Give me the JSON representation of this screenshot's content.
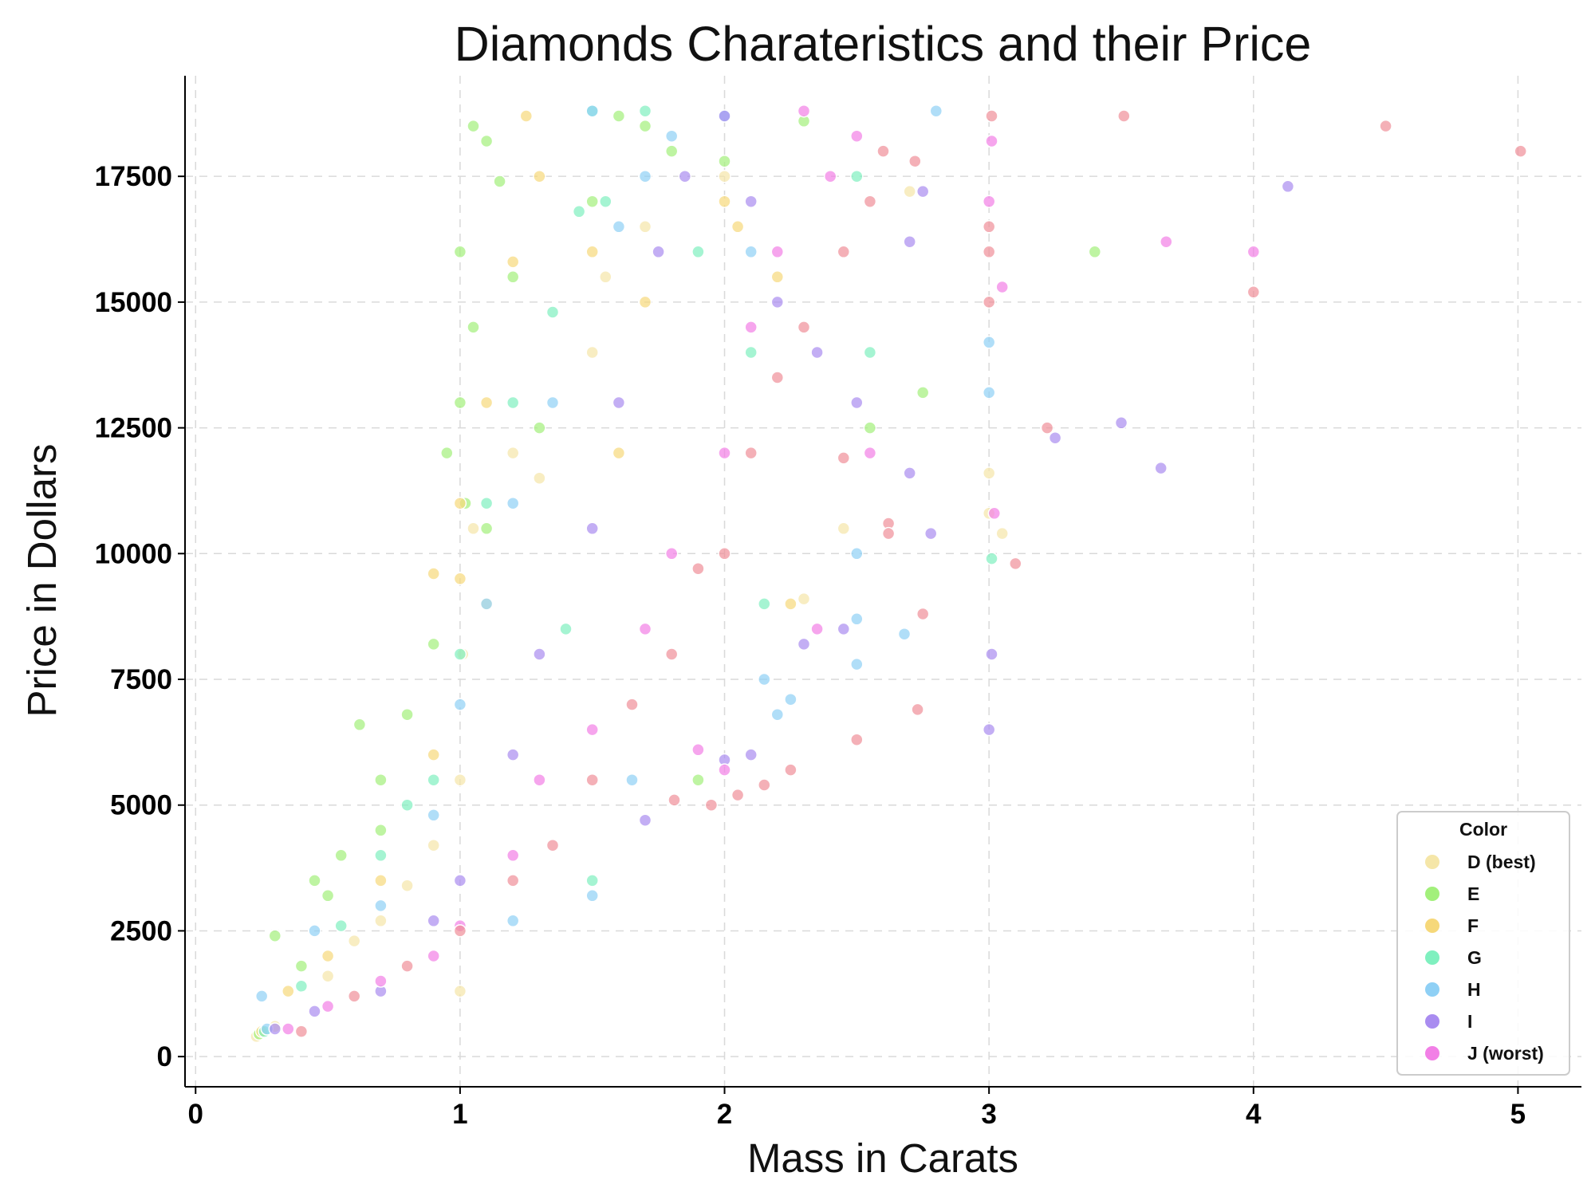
{
  "chart_data": {
    "type": "scatter",
    "title": "Diamonds Charateristics and their Price",
    "xlabel": "Mass in Carats",
    "ylabel": "Price in Dollars",
    "xlim": [
      -0.04,
      5.24
    ],
    "ylim": [
      -600,
      19500
    ],
    "x_ticks": [
      0,
      1,
      2,
      3,
      4,
      5
    ],
    "y_ticks": [
      0,
      2500,
      5000,
      7500,
      10000,
      12500,
      15000,
      17500
    ],
    "grid": true,
    "legend": {
      "title": "Color",
      "placement": "bottom-right"
    },
    "series": [
      {
        "name": "D (best)",
        "color": "#f5e6a8",
        "points": [
          [
            0.23,
            400
          ],
          [
            0.3,
            600
          ],
          [
            0.5,
            1600
          ],
          [
            0.7,
            2700
          ],
          [
            0.9,
            4200
          ],
          [
            1.0,
            5500
          ],
          [
            1.01,
            8000
          ],
          [
            1.05,
            10500
          ],
          [
            1.1,
            9000
          ],
          [
            1.2,
            12000
          ],
          [
            1.3,
            11500
          ],
          [
            1.5,
            14000
          ],
          [
            1.55,
            15500
          ],
          [
            1.7,
            16500
          ],
          [
            2.0,
            17500
          ],
          [
            2.7,
            17200
          ],
          [
            3.0,
            11600
          ],
          [
            3.05,
            10400
          ],
          [
            3.0,
            10800
          ],
          [
            2.45,
            10500
          ],
          [
            2.3,
            9100
          ],
          [
            0.8,
            3400
          ],
          [
            0.6,
            2300
          ],
          [
            1.0,
            1300
          ]
        ]
      },
      {
        "name": "E",
        "color": "#a2f07b",
        "points": [
          [
            0.24,
            450
          ],
          [
            0.3,
            2400
          ],
          [
            0.45,
            3500
          ],
          [
            0.55,
            4000
          ],
          [
            0.62,
            6600
          ],
          [
            0.7,
            5500
          ],
          [
            0.8,
            6800
          ],
          [
            0.9,
            8200
          ],
          [
            0.95,
            12000
          ],
          [
            1.0,
            16000
          ],
          [
            1.05,
            18500
          ],
          [
            1.1,
            18200
          ],
          [
            1.15,
            17400
          ],
          [
            1.0,
            13000
          ],
          [
            1.05,
            14500
          ],
          [
            1.2,
            15500
          ],
          [
            1.3,
            12500
          ],
          [
            1.5,
            17000
          ],
          [
            1.6,
            18700
          ],
          [
            1.7,
            18500
          ],
          [
            1.8,
            18000
          ],
          [
            2.0,
            17800
          ],
          [
            2.3,
            18600
          ],
          [
            3.4,
            16000
          ],
          [
            2.75,
            13200
          ],
          [
            2.55,
            12500
          ],
          [
            1.9,
            5500
          ],
          [
            1.02,
            11000
          ],
          [
            1.1,
            10500
          ],
          [
            0.7,
            4500
          ],
          [
            0.5,
            3200
          ],
          [
            0.4,
            1800
          ]
        ]
      },
      {
        "name": "F",
        "color": "#f6d87a",
        "points": [
          [
            0.25,
            500
          ],
          [
            0.35,
            1300
          ],
          [
            0.5,
            2000
          ],
          [
            0.7,
            3500
          ],
          [
            0.9,
            6000
          ],
          [
            1.0,
            9500
          ],
          [
            1.1,
            13000
          ],
          [
            1.2,
            15800
          ],
          [
            1.3,
            17500
          ],
          [
            1.5,
            16000
          ],
          [
            1.7,
            15000
          ],
          [
            2.0,
            17000
          ],
          [
            2.05,
            16500
          ],
          [
            2.2,
            15500
          ],
          [
            0.9,
            9600
          ],
          [
            1.0,
            11000
          ],
          [
            2.25,
            9000
          ],
          [
            1.6,
            12000
          ],
          [
            1.25,
            18700
          ]
        ]
      },
      {
        "name": "G",
        "color": "#7ff0bf",
        "points": [
          [
            0.26,
            500
          ],
          [
            0.4,
            1400
          ],
          [
            0.55,
            2600
          ],
          [
            0.7,
            4000
          ],
          [
            0.9,
            5500
          ],
          [
            1.0,
            8000
          ],
          [
            1.1,
            11000
          ],
          [
            1.2,
            13000
          ],
          [
            1.35,
            14800
          ],
          [
            1.5,
            18800
          ],
          [
            1.55,
            17000
          ],
          [
            1.7,
            18800
          ],
          [
            1.9,
            16000
          ],
          [
            2.1,
            14000
          ],
          [
            2.5,
            17500
          ],
          [
            2.55,
            14000
          ],
          [
            3.01,
            9900
          ],
          [
            2.15,
            9000
          ],
          [
            1.5,
            3500
          ],
          [
            1.4,
            8500
          ],
          [
            0.8,
            5000
          ],
          [
            1.45,
            16800
          ]
        ]
      },
      {
        "name": "H",
        "color": "#8fd0f5",
        "points": [
          [
            0.27,
            550
          ],
          [
            0.25,
            1200
          ],
          [
            0.45,
            2500
          ],
          [
            0.7,
            3000
          ],
          [
            0.9,
            4800
          ],
          [
            1.0,
            7000
          ],
          [
            1.1,
            9000
          ],
          [
            1.2,
            11000
          ],
          [
            1.35,
            13000
          ],
          [
            1.5,
            18800
          ],
          [
            1.6,
            16500
          ],
          [
            1.7,
            17500
          ],
          [
            1.8,
            18300
          ],
          [
            2.0,
            18700
          ],
          [
            2.1,
            16000
          ],
          [
            2.25,
            7100
          ],
          [
            2.5,
            8700
          ],
          [
            2.5,
            7800
          ],
          [
            2.5,
            10000
          ],
          [
            2.68,
            8400
          ],
          [
            2.8,
            18800
          ],
          [
            3.0,
            14200
          ],
          [
            3.0,
            13200
          ],
          [
            2.15,
            7500
          ],
          [
            1.5,
            3200
          ],
          [
            1.65,
            5500
          ],
          [
            1.2,
            2700
          ],
          [
            2.2,
            6800
          ]
        ]
      },
      {
        "name": "I",
        "color": "#a98cf0",
        "points": [
          [
            0.3,
            550
          ],
          [
            0.45,
            900
          ],
          [
            0.7,
            1300
          ],
          [
            0.9,
            2700
          ],
          [
            1.0,
            3500
          ],
          [
            1.2,
            6000
          ],
          [
            1.3,
            8000
          ],
          [
            1.5,
            10500
          ],
          [
            1.6,
            13000
          ],
          [
            1.75,
            16000
          ],
          [
            1.85,
            17500
          ],
          [
            2.0,
            18700
          ],
          [
            2.1,
            17000
          ],
          [
            2.2,
            15000
          ],
          [
            2.35,
            14000
          ],
          [
            2.5,
            13000
          ],
          [
            2.7,
            16200
          ],
          [
            2.75,
            17200
          ],
          [
            3.01,
            8000
          ],
          [
            3.0,
            6500
          ],
          [
            3.25,
            12300
          ],
          [
            3.5,
            12600
          ],
          [
            3.65,
            11700
          ],
          [
            4.13,
            17300
          ],
          [
            2.3,
            8200
          ],
          [
            2.1,
            6000
          ],
          [
            2.0,
            5900
          ],
          [
            1.7,
            4700
          ],
          [
            2.78,
            10400
          ],
          [
            2.7,
            11600
          ],
          [
            2.45,
            8500
          ]
        ]
      },
      {
        "name": "J (worst)",
        "color": "#f27fe6",
        "points": [
          [
            0.35,
            550
          ],
          [
            0.5,
            1000
          ],
          [
            0.7,
            1500
          ],
          [
            0.9,
            2000
          ],
          [
            1.0,
            2600
          ],
          [
            1.2,
            4000
          ],
          [
            1.3,
            5500
          ],
          [
            1.5,
            6500
          ],
          [
            1.7,
            8500
          ],
          [
            1.8,
            10000
          ],
          [
            2.0,
            12000
          ],
          [
            2.1,
            14500
          ],
          [
            2.2,
            16000
          ],
          [
            2.3,
            18800
          ],
          [
            2.4,
            17500
          ],
          [
            2.5,
            18300
          ],
          [
            3.01,
            18200
          ],
          [
            3.0,
            17000
          ],
          [
            3.02,
            10800
          ],
          [
            3.05,
            15300
          ],
          [
            3.67,
            16200
          ],
          [
            4.0,
            16000
          ],
          [
            2.55,
            12000
          ],
          [
            2.35,
            8500
          ],
          [
            2.0,
            5700
          ],
          [
            1.9,
            6100
          ]
        ]
      },
      {
        "name": "",
        "color": "#f08f98",
        "points": [
          [
            0.4,
            500
          ],
          [
            0.6,
            1200
          ],
          [
            0.8,
            1800
          ],
          [
            1.0,
            2500
          ],
          [
            1.2,
            3500
          ],
          [
            1.35,
            4200
          ],
          [
            1.5,
            5500
          ],
          [
            1.65,
            7000
          ],
          [
            1.8,
            8000
          ],
          [
            2.0,
            10000
          ],
          [
            2.1,
            12000
          ],
          [
            2.2,
            13500
          ],
          [
            2.3,
            14500
          ],
          [
            2.45,
            16000
          ],
          [
            2.55,
            17000
          ],
          [
            2.6,
            18000
          ],
          [
            3.01,
            18700
          ],
          [
            3.0,
            16500
          ],
          [
            3.0,
            16000
          ],
          [
            3.0,
            15000
          ],
          [
            3.1,
            9800
          ],
          [
            2.72,
            17800
          ],
          [
            2.62,
            10600
          ],
          [
            2.62,
            10400
          ],
          [
            2.75,
            8800
          ],
          [
            2.73,
            6900
          ],
          [
            2.5,
            6300
          ],
          [
            2.45,
            11900
          ],
          [
            2.25,
            5700
          ],
          [
            2.15,
            5400
          ],
          [
            2.05,
            5200
          ],
          [
            1.95,
            5000
          ],
          [
            1.81,
            5100
          ],
          [
            1.9,
            9700
          ],
          [
            3.51,
            18700
          ],
          [
            4.0,
            15200
          ],
          [
            4.5,
            18500
          ],
          [
            5.01,
            18000
          ],
          [
            3.22,
            12500
          ]
        ]
      }
    ]
  }
}
